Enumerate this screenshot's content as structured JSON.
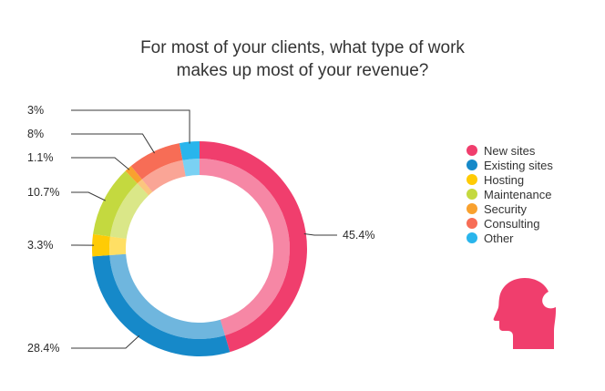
{
  "chart_data": {
    "type": "pie",
    "variant": "donut",
    "title_lines": [
      "For most of your clients, what type of work",
      "makes up most of your revenue?"
    ],
    "categories": [
      "New sites",
      "Existing sites",
      "Hosting",
      "Maintenance",
      "Security",
      "Consulting",
      "Other"
    ],
    "values": [
      45.4,
      28.4,
      3.3,
      10.7,
      1.1,
      8,
      3
    ],
    "labels": [
      "45.4%",
      "28.4%",
      "3.3%",
      "10.7%",
      "1.1%",
      "8%",
      "3%"
    ],
    "colors": [
      "#f03e6d",
      "#1689c9",
      "#ffcb05",
      "#c4d93f",
      "#f9a12e",
      "#f76d56",
      "#29b5ec"
    ],
    "legend_position": "right",
    "direction": "clockwise-from-top"
  },
  "logo": {
    "icon": "head-silhouette-icon",
    "color": "#f03e6d"
  }
}
